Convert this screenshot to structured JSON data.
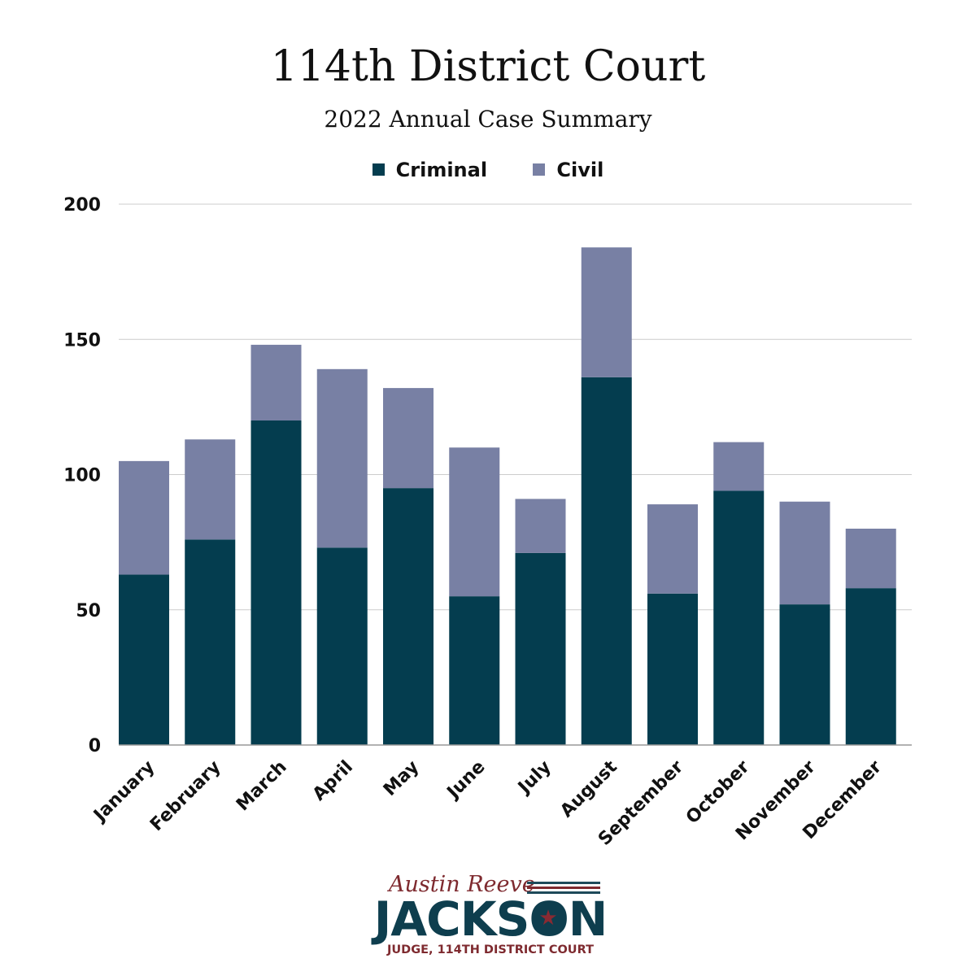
{
  "chart_data": {
    "type": "bar",
    "stacked": true,
    "title": "114th District Court",
    "subtitle": "2022 Annual Case Summary",
    "categories": [
      "January",
      "February",
      "March",
      "April",
      "May",
      "June",
      "July",
      "August",
      "September",
      "October",
      "November",
      "December"
    ],
    "series": [
      {
        "name": "Criminal",
        "color": "#043d4f",
        "values": [
          63,
          76,
          120,
          73,
          95,
          55,
          71,
          136,
          56,
          94,
          52,
          58
        ]
      },
      {
        "name": "Civil",
        "color": "#7880a4",
        "values": [
          42,
          37,
          28,
          66,
          37,
          55,
          20,
          48,
          33,
          18,
          38,
          22
        ]
      }
    ],
    "ylim": [
      0,
      200
    ],
    "yticks": [
      0,
      50,
      100,
      150,
      200
    ],
    "grid": true,
    "legend": "top-center",
    "xlabel": "",
    "ylabel": ""
  },
  "branding": {
    "first_names": "Austin Reeve",
    "surname": "JACKSON",
    "role": "JUDGE, 114TH DISTRICT COURT",
    "star_icon": "star-icon",
    "colors": {
      "red": "#7e2a2f",
      "navy": "#0e3e4e"
    }
  }
}
